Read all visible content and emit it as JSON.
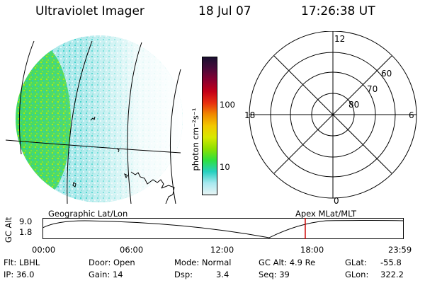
{
  "header": {
    "title": "Ultraviolet Imager",
    "date": "18 Jul 07",
    "time": "17:26:38 UT"
  },
  "colorbar": {
    "unit_label": "photon cm⁻²s⁻¹",
    "ticks": [
      "100",
      "10"
    ],
    "colors": [
      "#1a1030",
      "#4a0a3a",
      "#8a0030",
      "#c40018",
      "#e83010",
      "#f08a00",
      "#f2c800",
      "#d8e800",
      "#8ce000",
      "#2ee040",
      "#26d0c0",
      "#a8e8f0",
      "#e8f4f4"
    ]
  },
  "polar_plot": {
    "clock_labels": {
      "top": "12",
      "left": "18",
      "right": "6",
      "bottom": "0"
    },
    "lat_labels": [
      "60",
      "70",
      "80"
    ]
  },
  "altitude_plot": {
    "left_caption": "Geographic Lat/Lon",
    "right_caption": "Apex MLat/MLT",
    "y_axis_title": "GC Alt",
    "y_ticks": [
      "9.0",
      "1.8"
    ],
    "x_ticks": [
      "00:00",
      "06:00",
      "12:00",
      "18:00",
      "23:59"
    ],
    "marker_time": "17:26:38",
    "marker_color": "#cc0000"
  },
  "info": {
    "flt": "Flt: LBHL",
    "ip": "IP: 36.0",
    "door": "Door: Open",
    "gain": "Gain: 14",
    "mode": "Mode: Normal",
    "dsp_label": "Dsp:",
    "dsp_value": "3.4",
    "gc_alt": "GC Alt: 4.9 Re",
    "seq": "Seq: 39",
    "glat_label": "GLat:",
    "glat_value": "-55.8",
    "glon_label": "GLon:",
    "glon_value": "322.2"
  }
}
